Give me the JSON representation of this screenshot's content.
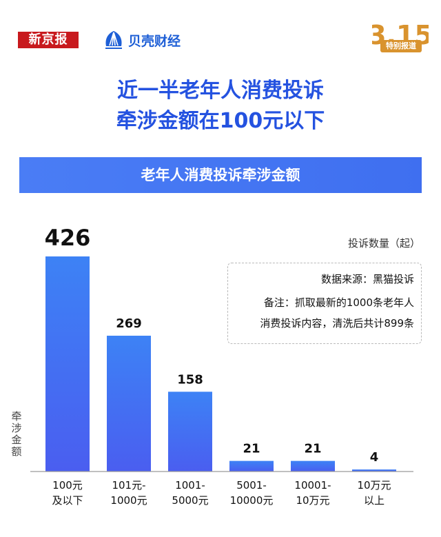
{
  "header": {
    "logo_xinjingbao": "新京报",
    "logo_beike": "贝壳财经",
    "logo_315_number": "3.15",
    "logo_315_text": "特别报道"
  },
  "title": {
    "line1": "近一半老年人消费投诉",
    "line2": "牵涉金额在100元以下"
  },
  "banner": "老年人消费投诉牵涉金额",
  "colors": {
    "title": "#2452e0",
    "bar_top": "#3d82f5",
    "bar_bottom": "#4a5ef0",
    "banner": "#4a7df5",
    "logo_red": "#c8191d"
  },
  "chart_data": {
    "type": "bar",
    "title": "老年人消费投诉牵涉金额",
    "categories": [
      [
        "100元",
        "及以下"
      ],
      [
        "101元-",
        "1000元"
      ],
      [
        "1001-",
        "5000元"
      ],
      [
        "5001-",
        "10000元"
      ],
      [
        "10001-",
        "10万元"
      ],
      [
        "10万元",
        "以上"
      ]
    ],
    "values": [
      426,
      269,
      158,
      21,
      21,
      4
    ],
    "value_labels": [
      "426",
      "269",
      "158",
      "21",
      "21",
      "4"
    ],
    "unit_label": "投诉数量（起）",
    "xlabel": "牵涉金额",
    "ylim": [
      0,
      426
    ],
    "grid": false
  },
  "notes": {
    "source": "数据来源：黑猫投诉",
    "line1": "备注：抓取最新的1000条老年人",
    "line2": "消费投诉内容，清洗后共计899条"
  }
}
